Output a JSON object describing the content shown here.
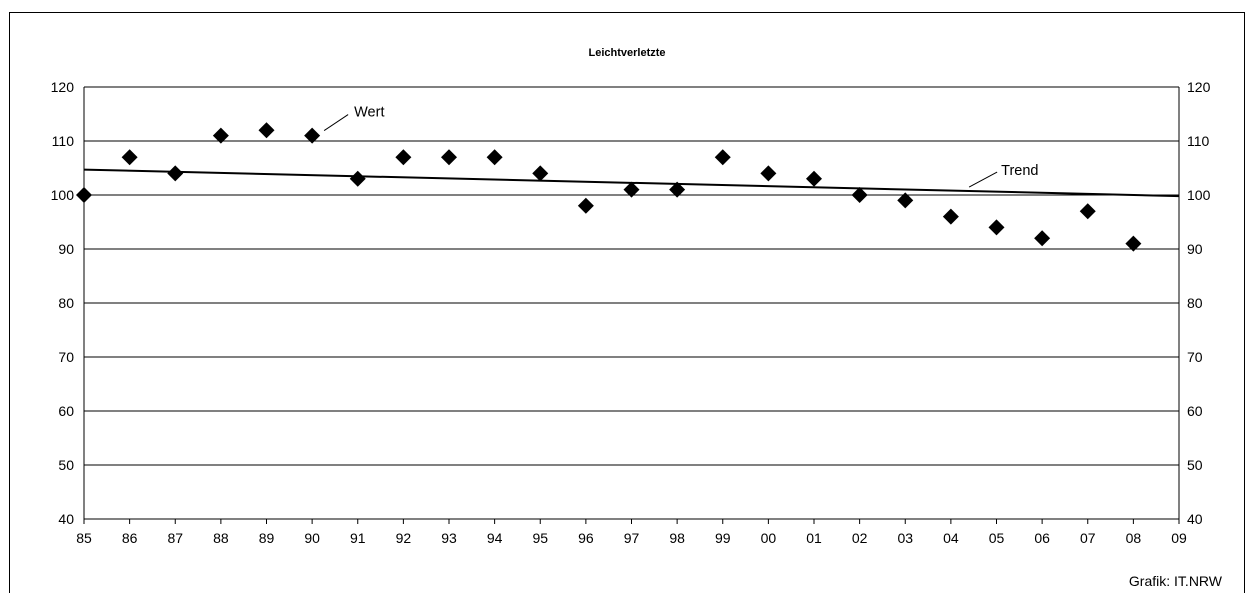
{
  "chart_data": {
    "type": "scatter",
    "title": "Leichtverletzte",
    "x_tick_labels": [
      "85",
      "86",
      "87",
      "88",
      "89",
      "90",
      "91",
      "92",
      "93",
      "94",
      "95",
      "96",
      "97",
      "98",
      "99",
      "00",
      "01",
      "02",
      "03",
      "04",
      "05",
      "06",
      "07",
      "08",
      "09"
    ],
    "y_ticks": [
      40,
      50,
      60,
      70,
      80,
      90,
      100,
      110,
      120
    ],
    "ylim": [
      40,
      120
    ],
    "grid": true,
    "series": [
      {
        "name": "Wert",
        "marker": "diamond",
        "points": [
          {
            "x": "85",
            "y": 100
          },
          {
            "x": "86",
            "y": 107
          },
          {
            "x": "87",
            "y": 104
          },
          {
            "x": "88",
            "y": 111
          },
          {
            "x": "89",
            "y": 112
          },
          {
            "x": "90",
            "y": 111
          },
          {
            "x": "91",
            "y": 103
          },
          {
            "x": "92",
            "y": 107
          },
          {
            "x": "93",
            "y": 107
          },
          {
            "x": "94",
            "y": 107
          },
          {
            "x": "95",
            "y": 104
          },
          {
            "x": "96",
            "y": 98
          },
          {
            "x": "97",
            "y": 101
          },
          {
            "x": "98",
            "y": 101
          },
          {
            "x": "99",
            "y": 107
          },
          {
            "x": "00",
            "y": 104
          },
          {
            "x": "01",
            "y": 103
          },
          {
            "x": "02",
            "y": 100
          },
          {
            "x": "03",
            "y": 99
          },
          {
            "x": "04",
            "y": 96
          },
          {
            "x": "05",
            "y": 94
          },
          {
            "x": "06",
            "y": 92
          },
          {
            "x": "07",
            "y": 97
          },
          {
            "x": "08",
            "y": 91
          }
        ]
      },
      {
        "name": "Trend",
        "type": "line",
        "points": [
          {
            "x": "85",
            "y": 104.7
          },
          {
            "x": "09",
            "y": 99.8
          }
        ]
      }
    ],
    "annotations": [
      {
        "text": "Wert",
        "target": "Wert"
      },
      {
        "text": "Trend",
        "target": "Trend"
      }
    ]
  },
  "credit": "Grafik: IT.NRW"
}
